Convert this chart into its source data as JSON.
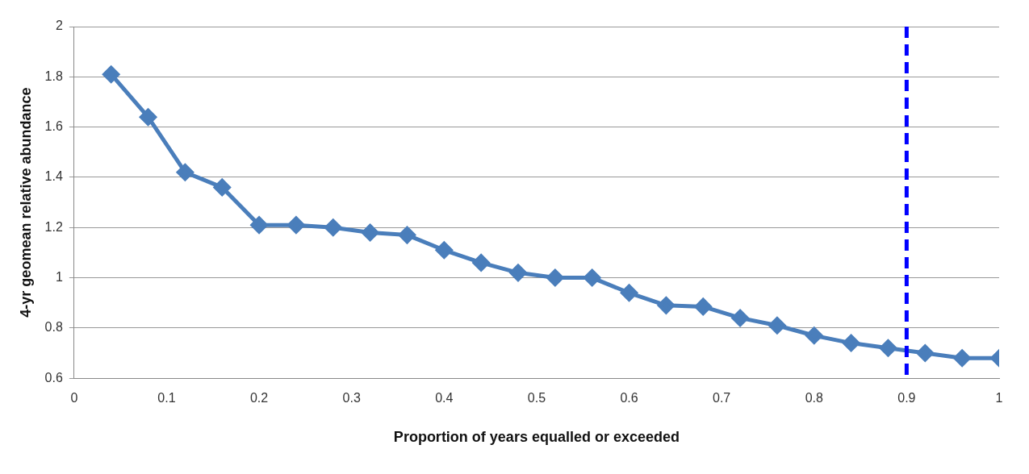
{
  "chart_data": {
    "type": "line",
    "xlabel": "Proportion of years equalled or exceeded",
    "ylabel": "4-yr geomean relative abundance",
    "x": [
      0.04,
      0.08,
      0.12,
      0.16,
      0.2,
      0.24,
      0.28,
      0.32,
      0.36,
      0.4,
      0.44,
      0.48,
      0.52,
      0.56,
      0.6,
      0.64,
      0.68,
      0.72,
      0.76,
      0.8,
      0.84,
      0.88,
      0.92,
      0.96,
      1
    ],
    "series": [
      {
        "color": "#4a7ebb",
        "values": [
          1.81,
          1.64,
          1.42,
          1.36,
          1.21,
          1.21,
          1.2,
          1.18,
          1.17,
          1.11,
          1.06,
          1.02,
          1.0,
          1.0,
          0.94,
          0.89,
          0.885,
          0.84,
          0.81,
          0.77,
          0.74,
          0.72,
          0.7,
          0.68,
          0.68
        ]
      }
    ],
    "xlim": [
      0,
      1
    ],
    "xticks": [
      0,
      0.1,
      0.2,
      0.3,
      0.4,
      0.5,
      0.6,
      0.7,
      0.8,
      0.9,
      1
    ],
    "ylim": [
      0.6,
      2
    ],
    "yticks": [
      0.6,
      0.8,
      1,
      1.2,
      1.4,
      1.6,
      1.8,
      2
    ],
    "ref_lines": [
      {
        "axis": "x",
        "value": 0.9,
        "color": "#0000ff",
        "line_style": "dashed"
      }
    ],
    "grid": "y",
    "legend": false,
    "marker": "diamond",
    "line_style": "solid"
  }
}
